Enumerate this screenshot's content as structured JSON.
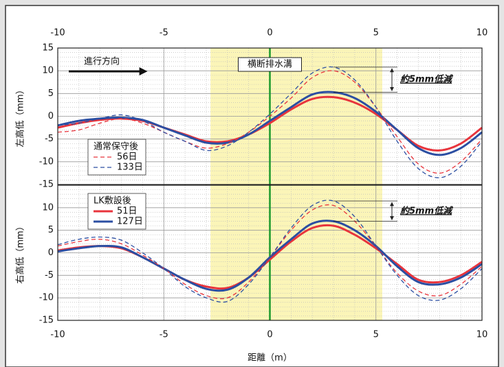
{
  "chart_data": [
    {
      "type": "line",
      "ylabel": "左高低（mm）",
      "xlim": [
        -10,
        10
      ],
      "xticks": [
        -10,
        -5,
        0,
        5,
        10
      ],
      "ylim": [
        -15,
        15
      ],
      "yticks": [
        -15,
        -10,
        -5,
        0,
        5,
        10,
        15
      ],
      "grid": true,
      "grid_minor_step": 1,
      "highlight": [
        -2.8,
        5.3
      ],
      "vline": 0,
      "tick_side": "top",
      "legend_title": "通常保守後",
      "legend": "lower left",
      "annotations": {
        "direction": "進行方向",
        "drain": "横断排水溝",
        "reduction": "約5mm低減"
      },
      "x": [
        -10,
        -9,
        -8,
        -7,
        -6,
        -5,
        -4,
        -3,
        -2,
        -1,
        0,
        1,
        2,
        3,
        4,
        5,
        6,
        7,
        8,
        9,
        10
      ],
      "series": [
        {
          "color": "#e8343c",
          "dashed": false,
          "values": [
            -2.5,
            -1.5,
            -0.8,
            -0.5,
            -1,
            -2.5,
            -4,
            -5.5,
            -5.5,
            -4,
            -1.5,
            1.5,
            3.8,
            4.2,
            3,
            0.5,
            -3,
            -6.5,
            -7.5,
            -6,
            -2.5
          ]
        },
        {
          "color": "#2b4ea2",
          "dashed": false,
          "values": [
            -2,
            -1,
            -0.5,
            -0.3,
            -0.8,
            -2.5,
            -4.2,
            -5.8,
            -5.8,
            -4,
            -1,
            2,
            4.8,
            5.3,
            4,
            1,
            -3,
            -7,
            -8.5,
            -7,
            -3.5
          ]
        },
        {
          "name": "56日",
          "color": "#e8343c",
          "dashed": true,
          "values": [
            -3.5,
            -3,
            -1.5,
            -0.5,
            -1.5,
            -3.5,
            -5.5,
            -7,
            -6,
            -3.5,
            0,
            4,
            8.5,
            10,
            7.5,
            2,
            -4.5,
            -10.5,
            -12.5,
            -10,
            -5
          ]
        },
        {
          "name": "133日",
          "color": "#2b4ea2",
          "dashed": true,
          "values": [
            -2,
            -1.5,
            -0.5,
            0.3,
            -1,
            -3.5,
            -5.5,
            -7.5,
            -6.5,
            -3.5,
            0.5,
            5,
            9.5,
            10.8,
            8,
            2,
            -5.5,
            -11.5,
            -13.5,
            -11,
            -5.5
          ]
        }
      ]
    },
    {
      "type": "line",
      "ylabel": "右高低（mm）",
      "xlabel": "距離（m）",
      "xlim": [
        -10,
        10
      ],
      "xticks": [
        -10,
        -5,
        0,
        5,
        10
      ],
      "ylim": [
        -15,
        15
      ],
      "yticks": [
        -15,
        -10,
        -5,
        0,
        5,
        10
      ],
      "grid": true,
      "grid_minor_step": 1,
      "highlight": [
        -2.8,
        5.3
      ],
      "vline": 0,
      "tick_side": "bottom",
      "legend_title": "LK敷設後",
      "legend": "upper left",
      "annotations": {
        "reduction": "約5mm低減"
      },
      "x": [
        -10,
        -9,
        -8,
        -7,
        -6,
        -5,
        -4,
        -3,
        -2,
        -1,
        0,
        1,
        2,
        3,
        4,
        5,
        6,
        7,
        8,
        9,
        10
      ],
      "series": [
        {
          "name": "51日",
          "color": "#e8343c",
          "dashed": false,
          "values": [
            0.5,
            1.2,
            1.5,
            1,
            -1,
            -3.5,
            -6,
            -7.5,
            -7.8,
            -5.5,
            -1.5,
            2.5,
            5.5,
            6,
            4,
            1,
            -2.5,
            -6,
            -6.5,
            -5,
            -2
          ]
        },
        {
          "name": "127日",
          "color": "#2b4ea2",
          "dashed": false,
          "values": [
            0.3,
            1,
            1.5,
            1.2,
            -1,
            -3.5,
            -6,
            -8,
            -8.2,
            -5.5,
            -1,
            3,
            6.5,
            7,
            5,
            1.5,
            -3,
            -6.5,
            -7,
            -5.5,
            -2.5
          ]
        },
        {
          "color": "#e8343c",
          "dashed": true,
          "values": [
            1.5,
            2.5,
            3,
            2,
            -0.5,
            -3.5,
            -7,
            -9.5,
            -10,
            -6.5,
            -1,
            5,
            9.5,
            10.5,
            7,
            1.5,
            -4.5,
            -8.5,
            -9.5,
            -7,
            -3
          ]
        },
        {
          "color": "#2b4ea2",
          "dashed": true,
          "values": [
            1.8,
            3,
            3.5,
            2.8,
            0,
            -3.5,
            -7.5,
            -10,
            -10.8,
            -7,
            -1,
            5.5,
            10.5,
            11.5,
            8,
            1.5,
            -5,
            -9.5,
            -10.5,
            -8,
            -3.5
          ]
        }
      ]
    }
  ]
}
